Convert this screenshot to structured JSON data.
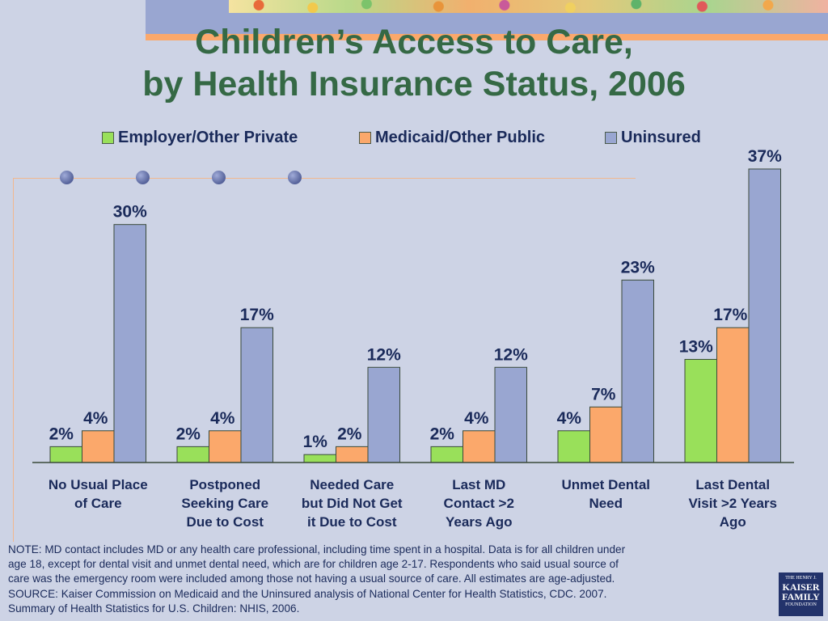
{
  "title": {
    "line1": "Children’s Access to Care,",
    "line2": "by Health Insurance Status, 2006"
  },
  "colors": {
    "employer": "#99e05a",
    "medicaid": "#fba86b",
    "uninsured": "#99a6d1"
  },
  "chart_data": {
    "type": "bar",
    "categories": [
      [
        "No Usual Place",
        "of Care"
      ],
      [
        "Postponed",
        "Seeking Care",
        "Due to Cost"
      ],
      [
        "Needed Care",
        "but Did Not Get",
        "it Due to Cost"
      ],
      [
        "Last MD",
        "Contact >2",
        "Years Ago"
      ],
      [
        "Unmet Dental",
        "Need"
      ],
      [
        "Last Dental",
        "Visit >2 Years",
        "Ago"
      ]
    ],
    "series": [
      {
        "name": "Employer/Other Private",
        "values": [
          2,
          2,
          1,
          2,
          4,
          13
        ],
        "labels": [
          "2%",
          "2%",
          "1%",
          "2%",
          "4%",
          "13%"
        ]
      },
      {
        "name": "Medicaid/Other Public",
        "values": [
          4,
          4,
          2,
          4,
          7,
          17
        ],
        "labels": [
          "4%",
          "4%",
          "2%",
          "4%",
          "7%",
          "17%"
        ]
      },
      {
        "name": "Uninsured",
        "values": [
          30,
          17,
          12,
          12,
          23,
          37
        ],
        "labels": [
          "30%",
          "17%",
          "12%",
          "12%",
          "23%",
          "37%"
        ]
      }
    ],
    "ylim": [
      0,
      37
    ],
    "legend_position": "top"
  },
  "note": {
    "line1": "NOTE: MD contact includes MD or any health care professional, including time spent in a hospital.  Data is for all children under",
    "line2": "age 18, except for dental visit and unmet dental need, which are for children age 2-17. Respondents who said usual source of",
    "line3": "care was the emergency room were included among those not having a usual source of care. All estimates are age-adjusted.",
    "line4": "SOURCE:  Kaiser Commission on Medicaid and the Uninsured analysis of National Center for Health Statistics, CDC.  2007.",
    "line5": "Summary of Health Statistics for U.S. Children: NHIS, 2006."
  },
  "logo": {
    "line1": "THE HENRY J.",
    "line2": "KAISER",
    "line3": "FAMILY",
    "line4": "FOUNDATION"
  }
}
